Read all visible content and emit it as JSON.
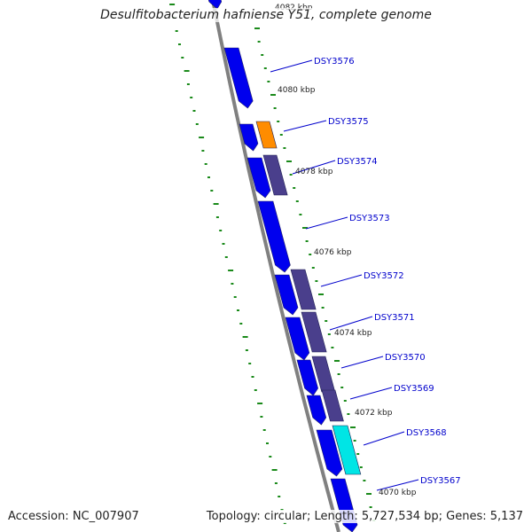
{
  "title": "Desulfitobacterium hafniense Y51, complete genome",
  "footer": {
    "accession": "Accession: NC_007907",
    "summary": "Topology: circular; Length: 5,727,534 bp; Genes: 5,137"
  },
  "genes": [
    "DSY3576",
    "DSY3575",
    "DSY3574",
    "DSY3573",
    "DSY3572",
    "DSY3571",
    "DSY3570",
    "DSY3569",
    "DSY3568",
    "DSY3567"
  ],
  "scale_labels": [
    "4082 kbp",
    "4080 kbp",
    "4078 kbp",
    "4076 kbp",
    "4074 kbp",
    "4072 kbp",
    "4070 kbp"
  ],
  "colors": {
    "cds": "#0000ee",
    "cog_purple": "#4a3f8c",
    "cog_orange": "#ff8c00",
    "cog_cyan": "#00e5e5",
    "backbone": "#808080",
    "tick": "#1a8a1a",
    "label": "#0000cc"
  }
}
